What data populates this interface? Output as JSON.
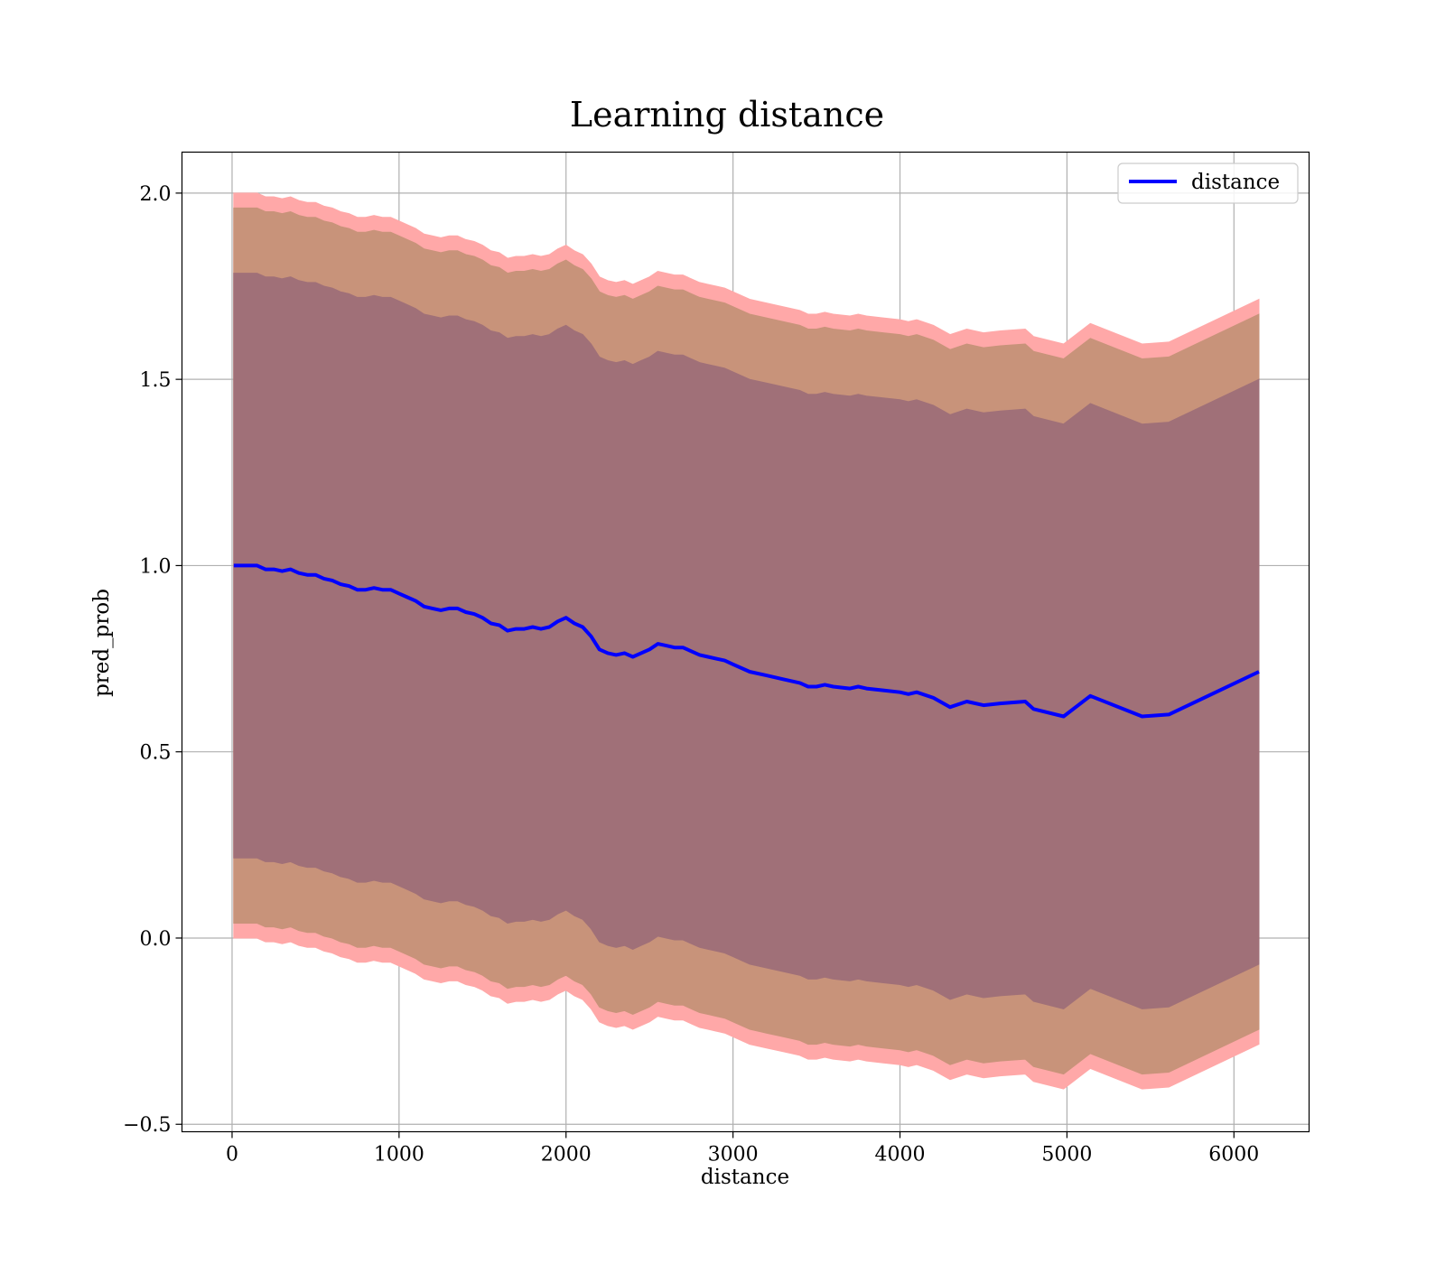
{
  "chart_data": {
    "type": "area",
    "title": "Learning distance",
    "xlabel": "distance",
    "ylabel": "pred_prob",
    "xlim": [
      -300,
      6450
    ],
    "ylim": [
      -0.52,
      2.11
    ],
    "xticks": [
      0,
      1000,
      2000,
      3000,
      4000,
      5000,
      6000
    ],
    "xtick_labels": [
      "0",
      "1000",
      "2000",
      "3000",
      "4000",
      "5000",
      "6000"
    ],
    "yticks": [
      -0.5,
      0.0,
      0.5,
      1.0,
      1.5,
      2.0
    ],
    "ytick_labels": [
      "−0.5",
      "0.0",
      "0.5",
      "1.0",
      "1.5",
      "2.0"
    ],
    "grid": true,
    "legend": {
      "placement": "top-right",
      "entries": [
        "distance"
      ]
    },
    "colors": {
      "line": "#0000ff",
      "outer_band": "#ffa8a8",
      "middle_band": "#c8937a",
      "inner_band": "#a07078",
      "grid": "#b0b0b0"
    },
    "x": [
      10,
      100,
      150,
      200,
      250,
      300,
      350,
      400,
      450,
      500,
      550,
      600,
      650,
      700,
      750,
      800,
      850,
      900,
      950,
      1000,
      1050,
      1100,
      1150,
      1200,
      1250,
      1300,
      1350,
      1400,
      1450,
      1500,
      1550,
      1600,
      1650,
      1700,
      1750,
      1800,
      1850,
      1900,
      1950,
      2000,
      2050,
      2100,
      2150,
      2200,
      2250,
      2300,
      2350,
      2400,
      2450,
      2500,
      2550,
      2600,
      2650,
      2700,
      2750,
      2800,
      2850,
      2900,
      2950,
      3000,
      3100,
      3200,
      3300,
      3400,
      3450,
      3500,
      3550,
      3600,
      3700,
      3750,
      3800,
      3900,
      4000,
      4050,
      4100,
      4200,
      4300,
      4400,
      4500,
      4600,
      4750,
      4800,
      4980,
      5140,
      5450,
      5610,
      6150
    ],
    "series": [
      {
        "name": "distance",
        "values": [
          1.0,
          1.0,
          1.0,
          0.99,
          0.99,
          0.985,
          0.99,
          0.98,
          0.975,
          0.975,
          0.965,
          0.96,
          0.95,
          0.945,
          0.935,
          0.935,
          0.94,
          0.935,
          0.935,
          0.925,
          0.915,
          0.905,
          0.89,
          0.885,
          0.88,
          0.885,
          0.885,
          0.875,
          0.87,
          0.86,
          0.845,
          0.84,
          0.825,
          0.83,
          0.83,
          0.835,
          0.83,
          0.835,
          0.85,
          0.86,
          0.845,
          0.835,
          0.81,
          0.775,
          0.765,
          0.76,
          0.765,
          0.755,
          0.765,
          0.775,
          0.79,
          0.785,
          0.78,
          0.78,
          0.77,
          0.76,
          0.755,
          0.75,
          0.745,
          0.735,
          0.715,
          0.705,
          0.695,
          0.685,
          0.675,
          0.675,
          0.68,
          0.675,
          0.67,
          0.675,
          0.67,
          0.665,
          0.66,
          0.655,
          0.66,
          0.645,
          0.62,
          0.635,
          0.625,
          0.63,
          0.635,
          0.615,
          0.595,
          0.65,
          0.595,
          0.6,
          0.715
        ]
      }
    ],
    "bands": [
      {
        "name": "outer",
        "half_width": 1.0
      },
      {
        "name": "middle",
        "half_width": 0.96
      },
      {
        "name": "inner",
        "half_width": 0.785
      }
    ]
  }
}
